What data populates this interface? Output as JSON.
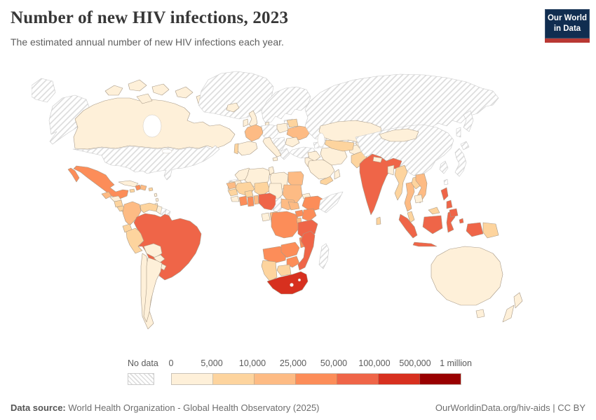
{
  "header": {
    "title": "Number of new HIV infections, 2023",
    "subtitle": "The estimated annual number of new HIV infections each year.",
    "logo": {
      "line1": "Our World",
      "line2": "in Data",
      "bg_color": "#102d50",
      "accent_color": "#b93833"
    }
  },
  "legend": {
    "no_data_label": "No data",
    "tick_labels": [
      "0",
      "5,000",
      "10,000",
      "25,000",
      "50,000",
      "100,000",
      "500,000",
      "1 million"
    ],
    "bins": [
      {
        "range": "0–5,000",
        "color": "#fef0d9"
      },
      {
        "range": "5,000–10,000",
        "color": "#fdd49e"
      },
      {
        "range": "10,000–25,000",
        "color": "#fdbb84"
      },
      {
        "range": "25,000–50,000",
        "color": "#fc8d59"
      },
      {
        "range": "50,000–100,000",
        "color": "#ef6548"
      },
      {
        "range": "100,000–500,000",
        "color": "#d7301f"
      },
      {
        "range": "500,000–1 million",
        "color": "#990000"
      }
    ]
  },
  "footer": {
    "source_label": "Data source:",
    "source_text": " World Health Organization - Global Health Observatory (2025)",
    "link_text": "OurWorldinData.org/hiv-aids | CC BY"
  },
  "chart_data": {
    "type": "heatmap",
    "subtype": "choropleth-world-map",
    "title": "Number of new HIV infections, 2023",
    "unit": "new HIV infections per year",
    "year": 2023,
    "bin_ranges": [
      "0-5,000",
      "5,000-10,000",
      "10,000-25,000",
      "25,000-50,000",
      "50,000-100,000",
      "100,000-500,000",
      "500,000-1 million"
    ],
    "bin_colors": [
      "#fef0d9",
      "#fdd49e",
      "#fdbb84",
      "#fc8d59",
      "#ef6548",
      "#d7301f",
      "#990000"
    ],
    "no_data_style": "gray-diagonal-hatch",
    "countries": {
      "canada": 0,
      "united-states": "no_data",
      "greenland": "no_data",
      "mexico": 3,
      "guatemala": 2,
      "honduras": 0,
      "nicaragua": 1,
      "costa-rica": 1,
      "panama": 1,
      "cuba": 0,
      "jamaica": 1,
      "haiti": 3,
      "dominican-republic": 2,
      "puerto-rico": 1,
      "caribbean-islands": 0,
      "colombia": 2,
      "venezuela": 1,
      "guyana": 0,
      "suriname": "no_data",
      "french-guiana": "no_data",
      "ecuador": 1,
      "peru": 1,
      "brazil": 4,
      "bolivia": 0,
      "paraguay": 0,
      "uruguay": 0,
      "chile": 0,
      "argentina": 0,
      "iceland": 0,
      "united-kingdom": 0,
      "ireland": 0,
      "nordic-countries": "no_data",
      "baltic-states": "no_data",
      "denmark": 0,
      "germany-central-europe": "no_data",
      "poland": 0,
      "belarus": 1,
      "ukraine": 2,
      "romania": 0,
      "balkans": "no_data",
      "greece": "no_data",
      "italy": 0,
      "france": 2,
      "spain": 0,
      "portugal": 1,
      "turkey": "no_data",
      "caucasus": "no_data",
      "levant": 0,
      "russia": "no_data",
      "morocco": 0,
      "western-sahara": "no_data",
      "algeria": 0,
      "tunisia": 0,
      "libya": 0,
      "egypt": 2,
      "mauritania": 0,
      "mali": 1,
      "niger": 1,
      "chad": 0,
      "sudan": 2,
      "eritrea": 0,
      "ethiopia": 3,
      "somalia": "no_data",
      "senegal": 2,
      "guinea": 1,
      "sierra-leone-liberia": 0,
      "burkina-faso": 1,
      "cote-divoire": 3,
      "ghana": 3,
      "togo-benin": 2,
      "nigeria": 4,
      "cameroon": "no_data",
      "central-african-republic": 2,
      "south-sudan": 2,
      "gabon": 0,
      "congo": 2,
      "dr-congo": 3,
      "uganda": 3,
      "kenya": 3,
      "rwanda-burundi": 2,
      "tanzania": 4,
      "angola": 3,
      "zambia": 3,
      "malawi": 3,
      "mozambique": 4,
      "zimbabwe": 3,
      "botswana": 1,
      "namibia": 1,
      "south-africa": 5,
      "madagascar": "no_data",
      "saudi-arabia": 0,
      "yemen": 1,
      "oman": 0,
      "iraq": 0,
      "iran": 0,
      "afghanistan": 0,
      "pakistan": 1,
      "kazakhstan": 0,
      "uzbekistan-turkmenistan": 1,
      "kyrgyzstan-tajikistan": 0,
      "india": 4,
      "nepal": 0,
      "bangladesh": 0,
      "sri-lanka": 1,
      "myanmar": 1,
      "thailand": 2,
      "laos": 1,
      "vietnam": 2,
      "cambodia": 0,
      "malaysia": 1,
      "indonesia": 4,
      "papua-new-guinea": 1,
      "philippines": 4,
      "china": "no_data",
      "mongolia": 0,
      "korea": "no_data",
      "japan": "no_data",
      "taiwan": "no_data",
      "australia": 0,
      "new-zealand": 0
    }
  }
}
